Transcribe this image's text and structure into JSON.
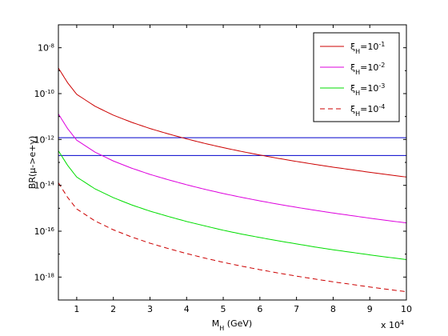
{
  "chart_data": {
    "type": "line",
    "xlabel": "M_H (GeV)",
    "xlabel_main": "M",
    "xlabel_sub": "H",
    "xlabel_rest": " (GeV)",
    "x_multiplier": "x 10",
    "x_multiplier_exp": "4",
    "ylabel": "BR(μ->e+γ)",
    "xlim": [
      0.5,
      10
    ],
    "ylim_log10": [
      -19,
      -7
    ],
    "y_log_scale": true,
    "grid": false,
    "legend_placement": "top-right",
    "x_ticks": [
      1,
      2,
      3,
      4,
      5,
      6,
      7,
      8,
      9,
      10
    ],
    "x_tick_labels": [
      "1",
      "2",
      "3",
      "4",
      "5",
      "6",
      "7",
      "8",
      "9",
      "10"
    ],
    "y_ticks_log10": [
      -8,
      -10,
      -12,
      -14,
      -16,
      -18
    ],
    "y_tick_labels": [
      {
        "base": "10",
        "exp": "-8"
      },
      {
        "base": "10",
        "exp": "-10"
      },
      {
        "base": "10",
        "exp": "-12"
      },
      {
        "base": "10",
        "exp": "-14"
      },
      {
        "base": "10",
        "exp": "-16"
      },
      {
        "base": "10",
        "exp": "-18"
      }
    ],
    "series": [
      {
        "name": "ξH=10^-1",
        "legend_main": "ξ",
        "legend_sub": "H",
        "legend_eq": "=10",
        "legend_exp": "-1",
        "color": "#cc0000",
        "dash": "solid",
        "x": [
          0.5,
          0.75,
          1,
          1.5,
          2,
          2.5,
          3,
          3.5,
          4,
          4.5,
          5,
          5.5,
          6,
          6.5,
          7,
          7.5,
          8,
          8.5,
          9,
          9.5,
          10
        ],
        "y": [
          1.3e-09,
          3e-10,
          9.3e-11,
          2.8e-11,
          1.15e-11,
          5.6e-12,
          3e-12,
          1.75e-12,
          1.06e-12,
          6.7e-13,
          4.4e-13,
          3e-13,
          2.1e-13,
          1.5e-13,
          1.1e-13,
          8.2e-14,
          6.2e-14,
          4.8e-14,
          3.7e-14,
          2.9e-14,
          2.3e-14
        ]
      },
      {
        "name": "ξH=10^-2",
        "legend_main": "ξ",
        "legend_sub": "H",
        "legend_eq": "=10",
        "legend_exp": "-2",
        "color": "#dd00dd",
        "dash": "solid",
        "x": [
          0.5,
          0.75,
          1,
          1.5,
          2,
          2.5,
          3,
          3.5,
          4,
          4.5,
          5,
          5.5,
          6,
          6.5,
          7,
          7.5,
          8,
          8.5,
          9,
          9.5,
          10
        ],
        "y": [
          1.3e-11,
          3e-12,
          9.3e-13,
          2.8e-13,
          1.15e-13,
          5.6e-14,
          3e-14,
          1.75e-14,
          1.06e-14,
          6.7e-15,
          4.4e-15,
          3e-15,
          2.1e-15,
          1.5e-15,
          1.1e-15,
          8.2e-16,
          6.2e-16,
          4.8e-16,
          3.7e-16,
          2.9e-16,
          2.3e-16
        ]
      },
      {
        "name": "ξH=10^-3",
        "legend_main": "ξ",
        "legend_sub": "H",
        "legend_eq": "=10",
        "legend_exp": "-3",
        "color": "#00dd00",
        "dash": "solid",
        "x": [
          0.5,
          0.75,
          1,
          1.5,
          2,
          2.5,
          3,
          3.5,
          4,
          4.5,
          5,
          5.5,
          6,
          6.5,
          7,
          7.5,
          8,
          8.5,
          9,
          9.5,
          10
        ],
        "y": [
          3.2e-13,
          7.5e-14,
          2.3e-14,
          7e-15,
          2.9e-15,
          1.4e-15,
          7.5e-16,
          4.4e-16,
          2.65e-16,
          1.7e-16,
          1.1e-16,
          7.5e-17,
          5.3e-17,
          3.8e-17,
          2.8e-17,
          2.05e-17,
          1.55e-17,
          1.2e-17,
          9.3e-18,
          7.3e-18,
          5.8e-18
        ]
      },
      {
        "name": "ξH=10^-4",
        "legend_main": "ξ",
        "legend_sub": "H",
        "legend_eq": "=10",
        "legend_exp": "-4",
        "color": "#cc0000",
        "dash": "dashed",
        "x": [
          0.5,
          0.75,
          1,
          1.5,
          2,
          2.5,
          3,
          3.5,
          4,
          4.5,
          5,
          5.5,
          6,
          6.5,
          7,
          7.5,
          8,
          8.5,
          9,
          9.5,
          10
        ],
        "y": [
          1.3e-14,
          3e-15,
          9.3e-16,
          2.8e-16,
          1.15e-16,
          5.6e-17,
          3e-17,
          1.75e-17,
          1.06e-17,
          6.7e-18,
          4.4e-18,
          3e-18,
          2.1e-18,
          1.5e-18,
          1.1e-18,
          8.2e-19,
          6.2e-19,
          4.8e-19,
          3.7e-19,
          2.9e-19,
          2.3e-19
        ]
      }
    ],
    "reference_lines": [
      {
        "y": 1.2e-12,
        "color": "#0000cc"
      },
      {
        "y": 2e-13,
        "color": "#0000cc"
      }
    ]
  }
}
